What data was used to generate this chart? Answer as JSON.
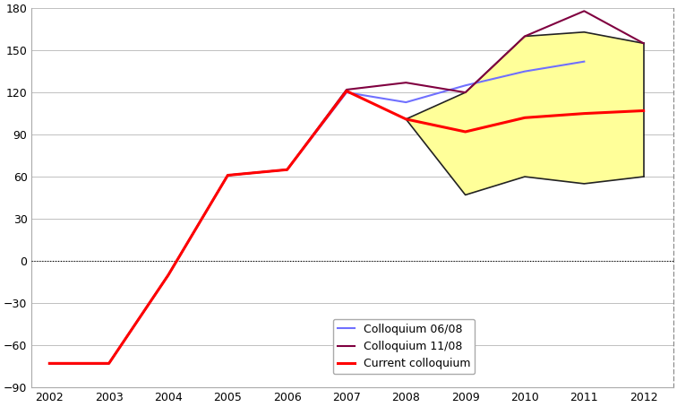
{
  "colloquium_0608": {
    "x": [
      2002,
      2003,
      2004,
      2005,
      2006,
      2007,
      2008,
      2009,
      2010,
      2011
    ],
    "y": [
      -73,
      -73,
      -10,
      61,
      65,
      120,
      113,
      125,
      135,
      142
    ]
  },
  "colloquium_1108": {
    "x": [
      2002,
      2003,
      2004,
      2005,
      2006,
      2007,
      2008,
      2009,
      2010,
      2011,
      2012
    ],
    "y": [
      -73,
      -73,
      -10,
      61,
      65,
      122,
      127,
      120,
      160,
      178,
      155
    ]
  },
  "current": {
    "x": [
      2002,
      2003,
      2004,
      2005,
      2006,
      2007,
      2008,
      2009,
      2010,
      2011,
      2012
    ],
    "y": [
      -73,
      -73,
      -10,
      61,
      65,
      121,
      101,
      92,
      102,
      105,
      107
    ]
  },
  "band_upper_x": [
    2008,
    2009,
    2010,
    2011,
    2012
  ],
  "band_upper_y": [
    101,
    120,
    160,
    163,
    155
  ],
  "band_lower_x": [
    2008,
    2009,
    2010,
    2011,
    2012
  ],
  "band_lower_y": [
    101,
    47,
    60,
    55,
    60
  ],
  "color_0608": "#7070ff",
  "color_1108": "#800040",
  "color_current": "#ff0000",
  "color_band_fill": "#ffff99",
  "color_band_edge": "#222222",
  "ylim": [
    -90,
    180
  ],
  "xlim": [
    2001.7,
    2012.5
  ],
  "yticks": [
    -90,
    -60,
    -30,
    0,
    30,
    60,
    90,
    120,
    150,
    180
  ],
  "xticks": [
    2002,
    2003,
    2004,
    2005,
    2006,
    2007,
    2008,
    2009,
    2010,
    2011,
    2012
  ],
  "legend_labels": [
    "Colloquium 06/08",
    "Colloquium 11/08",
    "Current colloquium"
  ]
}
